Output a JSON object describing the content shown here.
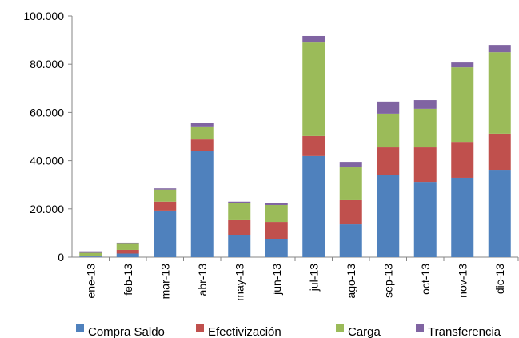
{
  "chart_data": {
    "type": "bar",
    "stacked": true,
    "categories": [
      "ene-13",
      "feb-13",
      "mar-13",
      "abr-13",
      "may-13",
      "jun-13",
      "jul-13",
      "ago-13",
      "sep-13",
      "oct-13",
      "nov-13",
      "dic-13"
    ],
    "series": [
      {
        "name": "Compra Saldo",
        "color": "#4f81bd",
        "values": [
          300,
          1500,
          19300,
          43900,
          9300,
          7600,
          41900,
          13600,
          33900,
          31200,
          32900,
          36200
        ]
      },
      {
        "name": "Efectivización",
        "color": "#c0504d",
        "values": [
          300,
          1500,
          3700,
          4900,
          6000,
          7000,
          8300,
          10000,
          11600,
          14300,
          14900,
          15000
        ]
      },
      {
        "name": "Carga",
        "color": "#9bbb59",
        "values": [
          1200,
          2500,
          5000,
          5400,
          7000,
          7000,
          38800,
          13600,
          14000,
          16000,
          30900,
          33800
        ]
      },
      {
        "name": "Transferencia",
        "color": "#8064a2",
        "values": [
          300,
          500,
          500,
          1300,
          700,
          700,
          2700,
          2300,
          5000,
          3600,
          2000,
          3000
        ]
      }
    ],
    "ylim": [
      0,
      100000
    ],
    "yticks": [
      0,
      {
        "value": 20000,
        "label": "20.000"
      },
      {
        "value": 40000,
        "label": "40.000"
      },
      {
        "value": 60000,
        "label": "60.000"
      },
      {
        "value": 80000,
        "label": "80.000"
      },
      {
        "value": 100000,
        "label": "100.000"
      }
    ],
    "grid": false,
    "legend": "bottom"
  }
}
